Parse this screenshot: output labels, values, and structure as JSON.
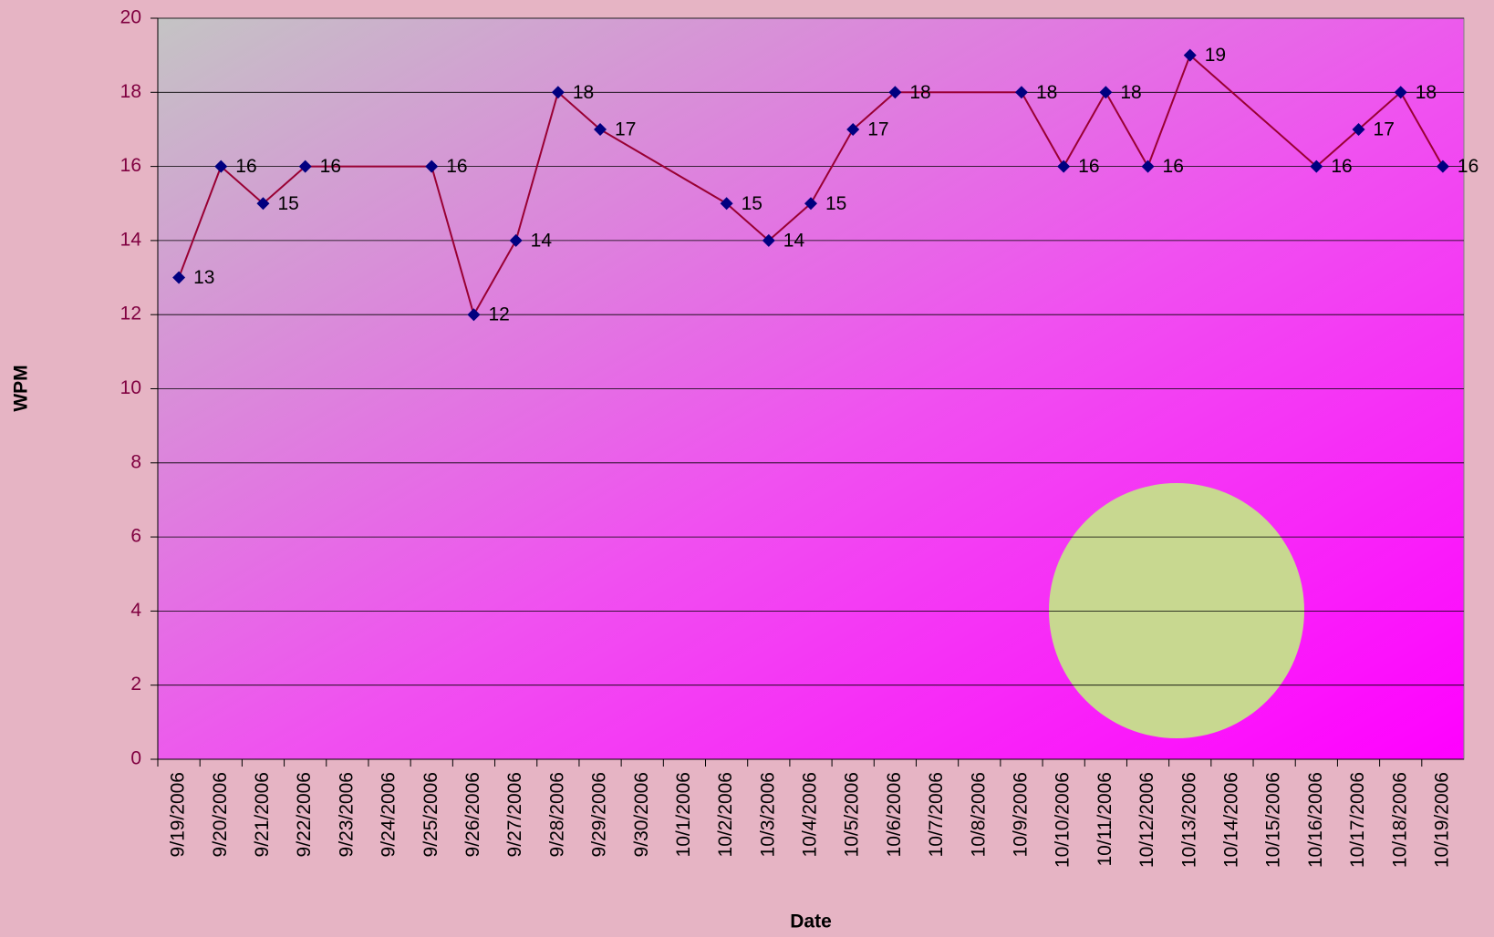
{
  "chart_data": {
    "type": "line",
    "x_label": "Date",
    "y_label": "WPM",
    "categories": [
      "9/19/2006",
      "9/20/2006",
      "9/21/2006",
      "9/22/2006",
      "9/23/2006",
      "9/24/2006",
      "9/25/2006",
      "9/26/2006",
      "9/27/2006",
      "9/28/2006",
      "9/29/2006",
      "9/30/2006",
      "10/1/2006",
      "10/2/2006",
      "10/3/2006",
      "10/4/2006",
      "10/5/2006",
      "10/6/2006",
      "10/7/2006",
      "10/8/2006",
      "10/9/2006",
      "10/10/2006",
      "10/11/2006",
      "10/12/2006",
      "10/13/2006",
      "10/14/2006",
      "10/15/2006",
      "10/16/2006",
      "10/17/2006",
      "10/18/2006",
      "10/19/2006"
    ],
    "series": [
      {
        "name": "WPM",
        "color": "#990033",
        "marker_color": "#000080",
        "values": [
          13,
          16,
          15,
          16,
          null,
          null,
          16,
          12,
          14,
          18,
          17,
          null,
          null,
          15,
          14,
          15,
          17,
          18,
          null,
          null,
          18,
          16,
          18,
          16,
          19,
          null,
          null,
          16,
          17,
          18,
          16
        ]
      }
    ],
    "ylim": [
      0,
      20
    ],
    "yticks": [
      0,
      2,
      4,
      6,
      8,
      10,
      12,
      14,
      16,
      18,
      20
    ],
    "grid": true
  }
}
